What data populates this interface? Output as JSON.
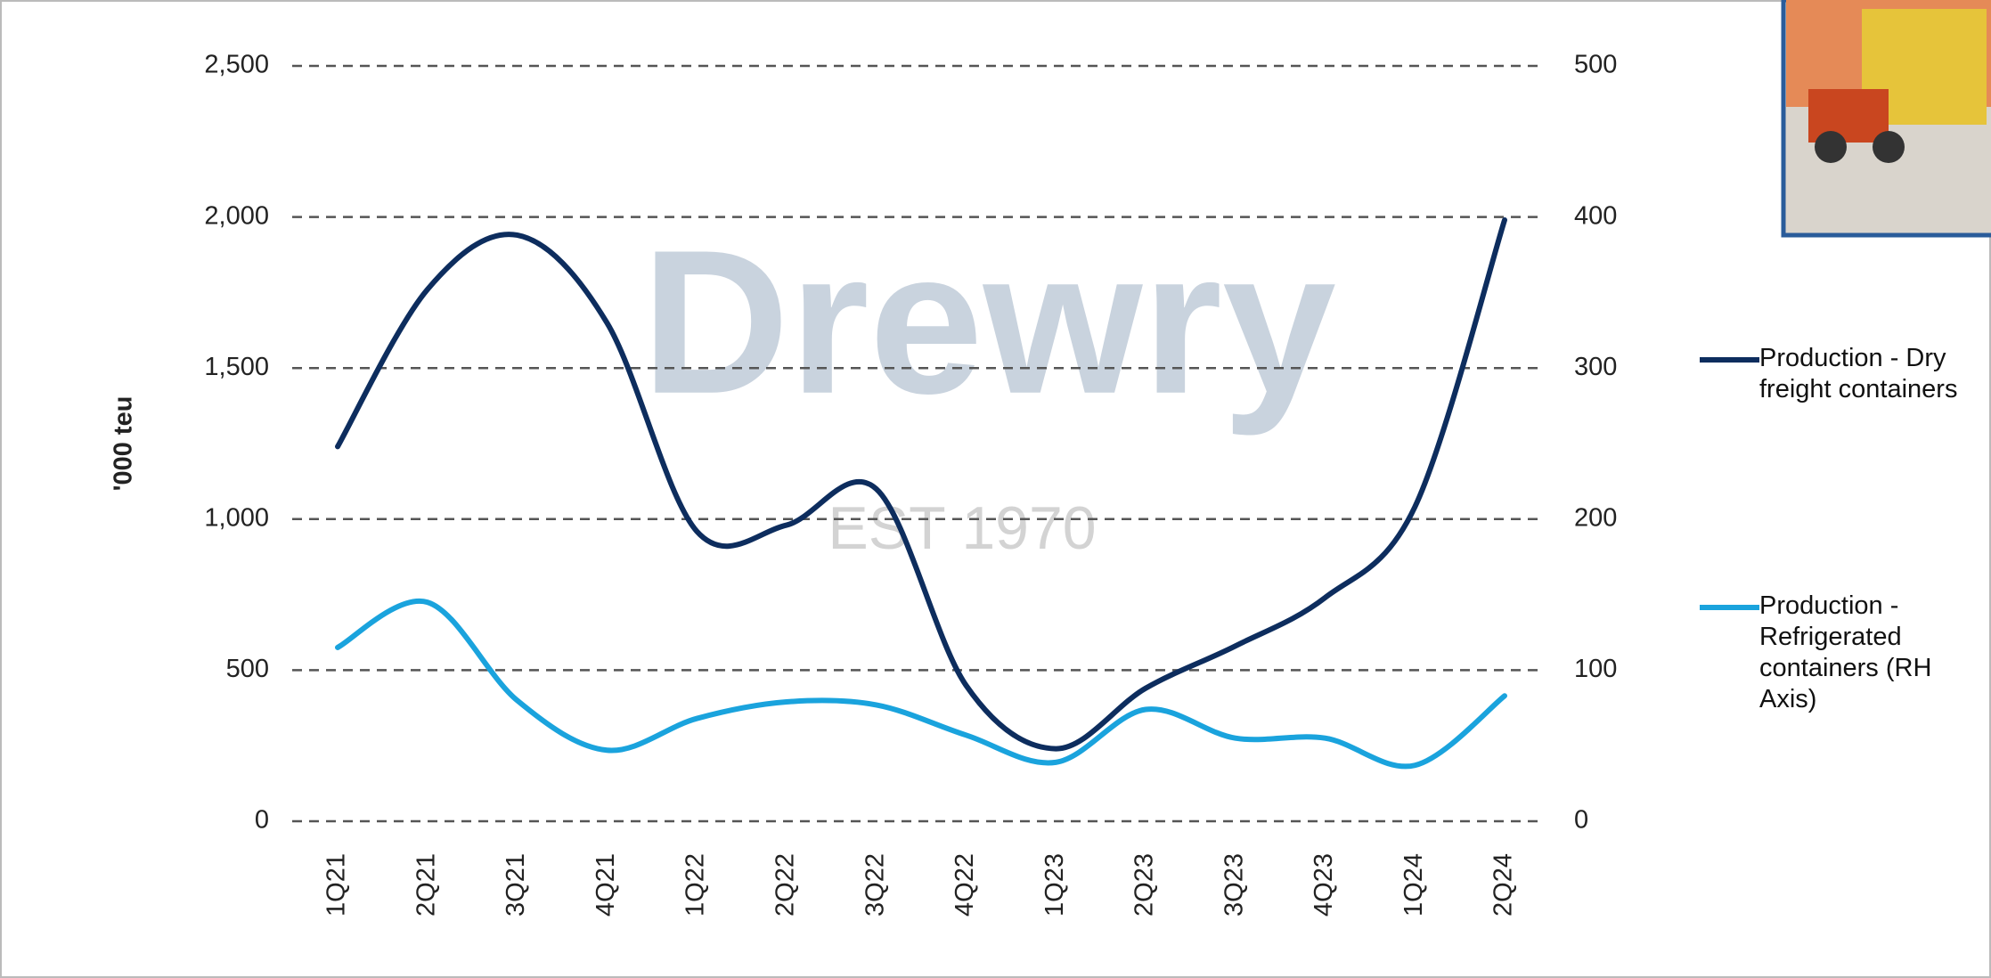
{
  "chart_data": {
    "type": "line",
    "y_label": "'000 teu",
    "watermark": "Drewry",
    "watermark_sub": "EST 1970",
    "categories": [
      "1Q21",
      "2Q21",
      "3Q21",
      "4Q21",
      "1Q22",
      "2Q22",
      "3Q22",
      "4Q22",
      "1Q23",
      "2Q23",
      "3Q23",
      "4Q23",
      "1Q24",
      "2Q24"
    ],
    "series": [
      {
        "name": "Production - Dry freight containers",
        "color": "#0d2d5e",
        "values": [
          1240,
          1760,
          1940,
          1650,
          960,
          980,
          1100,
          450,
          240,
          440,
          580,
          740,
          1040,
          1990
        ]
      },
      {
        "name": "Production - Refrigerated containers (RH Axis)",
        "color": "#1aa3dd",
        "axis": "y2",
        "values": [
          115,
          145,
          80,
          47,
          68,
          79,
          77,
          57,
          39,
          74,
          55,
          55,
          37,
          83
        ]
      }
    ],
    "ylim": [
      0,
      2500
    ],
    "yticks": [
      0,
      500,
      {
        "value": 1000,
        "label": "1,000"
      },
      {
        "value": 1500,
        "label": "1,500"
      },
      {
        "value": 2000,
        "label": "2,000"
      },
      {
        "value": 2500,
        "label": "2,500"
      }
    ],
    "y2lim": [
      0,
      500
    ],
    "y2ticks": [
      0,
      100,
      200,
      300,
      400,
      500
    ],
    "grid": true
  }
}
